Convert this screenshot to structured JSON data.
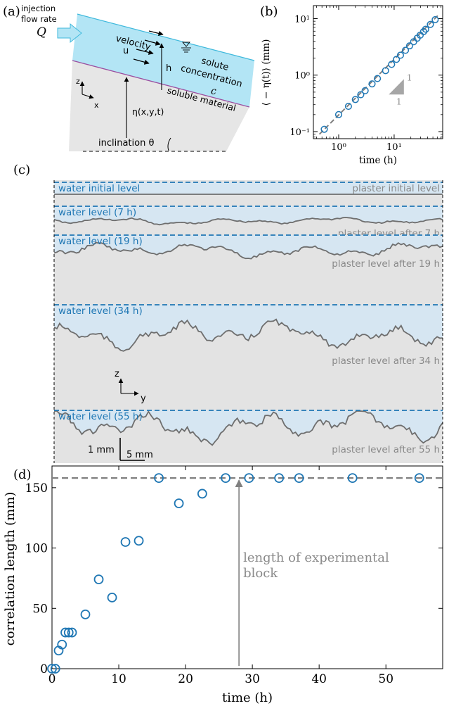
{
  "panels": {
    "a": "(a)",
    "b": "(b)",
    "c": "(c)",
    "d": "(d)"
  },
  "schematic": {
    "injection_line1": "injection",
    "injection_line2": "flow rate",
    "injection_symbol": "Q",
    "velocity_label": "velocity",
    "velocity_symbol": "u",
    "height_symbol": "h",
    "solute_line1": "solute",
    "solute_line2": "concentration",
    "solute_symbol": "c",
    "soluble_material": "soluble material",
    "eta_label": "η(x,y,t)",
    "inclination_label": "inclination θ",
    "axis_z": "z",
    "axis_x": "x",
    "colors": {
      "water": "#b3e5f5",
      "water_edge": "#3fb9dc",
      "material": "#e6e6e6",
      "interface": "#9b4fa0"
    }
  },
  "profiles": {
    "axis_z": "z",
    "axis_y": "y",
    "scale_vertical": "1 mm",
    "scale_horizontal": "5 mm",
    "colors": {
      "water": "#d6e6f2",
      "water_line": "#1f77b4",
      "material": "#e3e3e3",
      "profile": "#6e6e6e",
      "label": "#8a8a8a"
    },
    "strips": [
      {
        "water_label": "water initial level",
        "plaster_label": "plaster initial level",
        "roughness": 0
      },
      {
        "water_label": "water level (7 h)",
        "plaster_label": "plaster level after 7 h",
        "roughness": 0.25
      },
      {
        "water_label": "water level (19 h)",
        "plaster_label": "plaster level after 19 h",
        "roughness": 0.5
      },
      {
        "water_label": "water level (34 h)",
        "plaster_label": "plaster level after 34 h",
        "roughness": 0.8
      },
      {
        "water_label": "water level (55 h)",
        "plaster_label": "plaster level after 55 h",
        "roughness": 1
      }
    ]
  },
  "chart_data": [
    {
      "type": "scatter",
      "panel": "b",
      "xlabel": "time (h)",
      "ylabel": "⟨ − η(t)⟩ (mm)",
      "x_scale": "log",
      "y_scale": "log",
      "xlim": [
        0.35,
        75
      ],
      "ylim": [
        0.075,
        17
      ],
      "x_ticks": [
        {
          "value": 1,
          "label": "10⁰"
        },
        {
          "value": 10,
          "label": "10¹"
        }
      ],
      "y_ticks": [
        {
          "value": 0.1,
          "label": "10⁻¹"
        },
        {
          "value": 1,
          "label": "10⁰"
        },
        {
          "value": 10,
          "label": "10¹"
        }
      ],
      "slope_label_v": "1",
      "slope_label_h": "1",
      "fit_line": {
        "x": [
          0.45,
          65
        ],
        "y": [
          0.09,
          12
        ]
      },
      "x": [
        0.55,
        1.0,
        1.5,
        2.0,
        2.5,
        3.0,
        4.0,
        5.0,
        7.0,
        9.0,
        11.0,
        13.0,
        16.0,
        19.0,
        22.5,
        26.0,
        29.5,
        34.0,
        37.0,
        45.0,
        55.0
      ],
      "y": [
        0.11,
        0.2,
        0.28,
        0.37,
        0.45,
        0.53,
        0.7,
        0.87,
        1.2,
        1.55,
        1.9,
        2.25,
        2.75,
        3.3,
        3.9,
        4.5,
        5.1,
        5.9,
        6.5,
        7.9,
        9.6
      ],
      "marker_color": "#1f77b4",
      "line_color": "#808080"
    },
    {
      "type": "scatter",
      "panel": "d",
      "xlabel": "time (h)",
      "ylabel": "correlation length (mm)",
      "xlim": [
        0,
        58.5
      ],
      "ylim": [
        0,
        168
      ],
      "x_ticks": [
        0,
        10,
        20,
        30,
        40,
        50
      ],
      "y_ticks": [
        0,
        50,
        100,
        150
      ],
      "hline": 158,
      "annotation_line1": "length of experimental",
      "annotation_line2": "block",
      "annotation_x": 28,
      "x": [
        0,
        0.5,
        1.0,
        1.5,
        2.0,
        2.5,
        3.0,
        5.0,
        7.0,
        9.0,
        11.0,
        13.0,
        16.0,
        19.0,
        22.5,
        26.0,
        29.5,
        34.0,
        37.0,
        45.0,
        55.0
      ],
      "y": [
        0,
        0,
        15,
        20,
        30,
        30,
        30,
        45,
        74,
        59,
        105,
        106,
        158,
        137,
        145,
        158,
        158,
        158,
        158,
        158,
        158
      ],
      "marker_color": "#1f77b4",
      "line_color": "#808080"
    }
  ]
}
